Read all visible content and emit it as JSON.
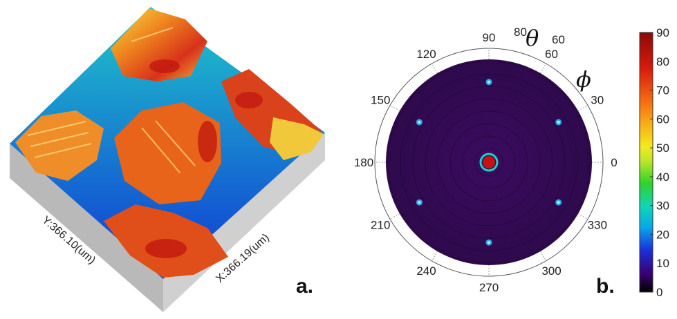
{
  "panel_a": {
    "label": "a.",
    "axis_y_label": "Y:366.10(um)",
    "axis_x_label": "X:366.19(um)"
  },
  "panel_b": {
    "label": "b.",
    "theta_symbol": "θ",
    "phi_symbol": "ϕ",
    "angle_labels": [
      "0",
      "30",
      "60",
      "90",
      "120",
      "150",
      "180",
      "210",
      "240",
      "270",
      "300",
      "330"
    ],
    "theta_ticks": [
      "80",
      "60"
    ],
    "colorbar_ticks": [
      "0",
      "10",
      "20",
      "30",
      "40",
      "50",
      "60",
      "70",
      "80",
      "90"
    ],
    "spots": [
      {
        "phi": 90,
        "r": 0.78
      },
      {
        "phi": 30,
        "r": 0.78
      },
      {
        "phi": 150,
        "r": 0.78
      },
      {
        "phi": 210,
        "r": 0.78
      },
      {
        "phi": 270,
        "r": 0.78
      },
      {
        "phi": 330,
        "r": 0.78
      }
    ],
    "colors": {
      "disk": "#3a0a5c",
      "center_ring": "#16d6c6",
      "center_core": "#c41212"
    }
  }
}
